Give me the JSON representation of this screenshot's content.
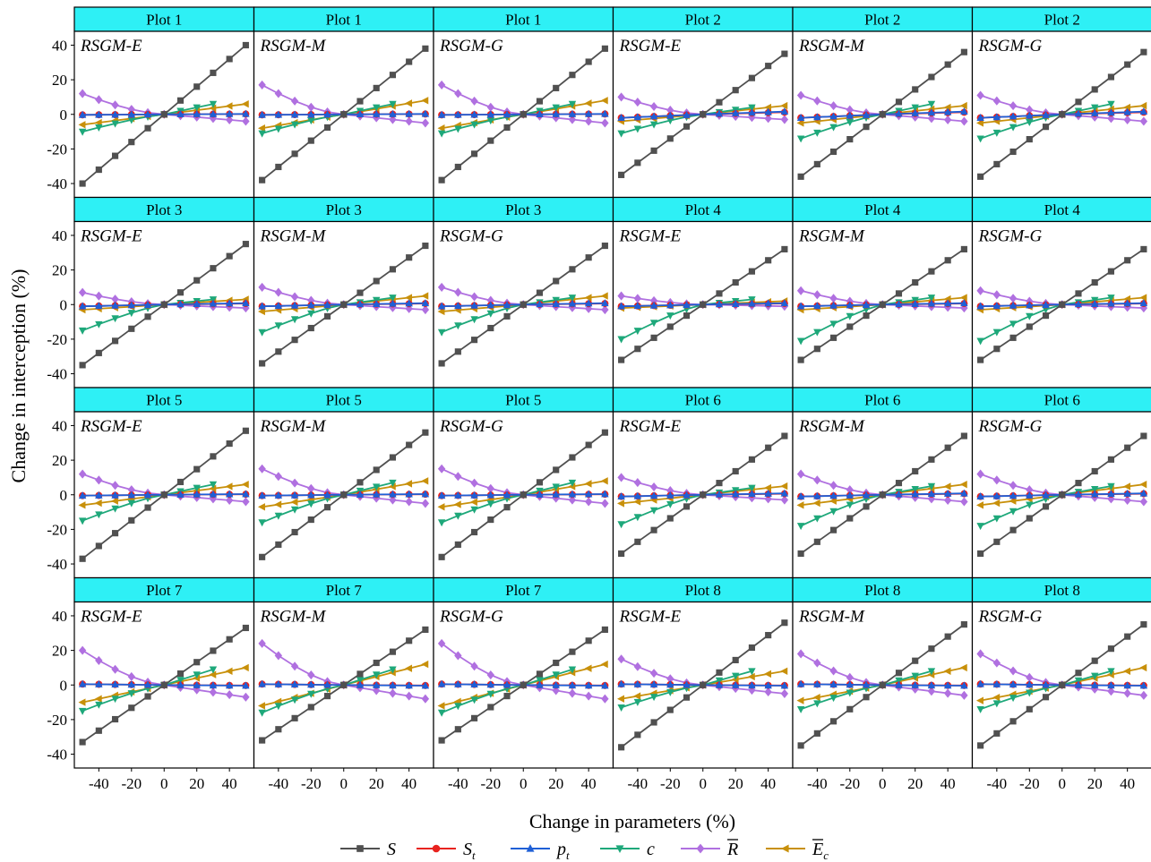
{
  "chart_data": {
    "type": "line",
    "ylabel": "Change in interception (%)",
    "xlabel": "Change in parameters (%)",
    "xlim": [
      -55,
      55
    ],
    "ylim": [
      -48,
      48
    ],
    "x_ticks": [
      -40,
      -20,
      0,
      20,
      40
    ],
    "x_tick_labels": [
      "-40",
      "-20",
      "0",
      "20",
      "40"
    ],
    "y_ticks": [
      40,
      20,
      0,
      -20,
      -40
    ],
    "y_tick_labels": [
      "40",
      "20",
      "0",
      "-20",
      "-40"
    ],
    "x": [
      -50,
      -40,
      -30,
      -20,
      -10,
      0,
      10,
      20,
      30,
      40,
      50
    ],
    "legend": {
      "placement": "bottom-center",
      "entries": [
        {
          "key": "S",
          "main": "S",
          "sub": "",
          "overline": false,
          "color": "#505050",
          "marker": "square"
        },
        {
          "key": "St",
          "main": "S",
          "sub": "t",
          "overline": false,
          "color": "#e8231f",
          "marker": "circle"
        },
        {
          "key": "pt",
          "main": "p",
          "sub": "t",
          "overline": false,
          "color": "#1f5fd6",
          "marker": "triangle-up"
        },
        {
          "key": "c",
          "main": "c",
          "sub": "",
          "overline": false,
          "color": "#1ea87a",
          "marker": "triangle-down"
        },
        {
          "key": "R",
          "main": "R",
          "sub": "",
          "overline": true,
          "color": "#b070e0",
          "marker": "diamond"
        },
        {
          "key": "Ec",
          "main": "E",
          "sub": "c",
          "overline": true,
          "color": "#c8900a",
          "marker": "triangle-left"
        }
      ]
    },
    "panels": [
      {
        "title": "Plot 1",
        "model": "RSGM-E",
        "S_end": 40,
        "St": -0.3,
        "pt": -0.3,
        "c_neg": -10,
        "c_pos": 6,
        "R_neg": 12,
        "R_pos": -4,
        "E_neg": -6,
        "E_pos": 6
      },
      {
        "title": "Plot 1",
        "model": "RSGM-M",
        "S_end": 38,
        "St": -0.3,
        "pt": -0.3,
        "c_neg": -11,
        "c_pos": 6,
        "R_neg": 17,
        "R_pos": -5,
        "E_neg": -8,
        "E_pos": 8
      },
      {
        "title": "Plot 1",
        "model": "RSGM-G",
        "S_end": 38,
        "St": -0.3,
        "pt": -0.3,
        "c_neg": -11,
        "c_pos": 6,
        "R_neg": 17,
        "R_pos": -5,
        "E_neg": -8,
        "E_pos": 8
      },
      {
        "title": "Plot 2",
        "model": "RSGM-E",
        "S_end": 35,
        "St": -2,
        "pt": -2,
        "c_neg": -11,
        "c_pos": 4,
        "R_neg": 10,
        "R_pos": -3,
        "E_neg": -4,
        "E_pos": 5
      },
      {
        "title": "Plot 2",
        "model": "RSGM-M",
        "S_end": 36,
        "St": -2,
        "pt": -2,
        "c_neg": -14,
        "c_pos": 6,
        "R_neg": 11,
        "R_pos": -4,
        "E_neg": -5,
        "E_pos": 5
      },
      {
        "title": "Plot 2",
        "model": "RSGM-G",
        "S_end": 36,
        "St": -2,
        "pt": -2,
        "c_neg": -14,
        "c_pos": 6,
        "R_neg": 11,
        "R_pos": -4,
        "E_neg": -5,
        "E_pos": 5
      },
      {
        "title": "Plot 3",
        "model": "RSGM-E",
        "S_end": 35,
        "St": -1,
        "pt": -1,
        "c_neg": -15,
        "c_pos": 3,
        "R_neg": 7,
        "R_pos": -2,
        "E_neg": -3,
        "E_pos": 3
      },
      {
        "title": "Plot 3",
        "model": "RSGM-M",
        "S_end": 34,
        "St": -1,
        "pt": -1,
        "c_neg": -16,
        "c_pos": 4,
        "R_neg": 10,
        "R_pos": -3,
        "E_neg": -4,
        "E_pos": 5
      },
      {
        "title": "Plot 3",
        "model": "RSGM-G",
        "S_end": 34,
        "St": -1,
        "pt": -1,
        "c_neg": -16,
        "c_pos": 4,
        "R_neg": 10,
        "R_pos": -3,
        "E_neg": -4,
        "E_pos": 5
      },
      {
        "title": "Plot 4",
        "model": "RSGM-E",
        "S_end": 32,
        "St": -1,
        "pt": -1,
        "c_neg": -20,
        "c_pos": 3,
        "R_neg": 5,
        "R_pos": -1,
        "E_neg": -2,
        "E_pos": 2
      },
      {
        "title": "Plot 4",
        "model": "RSGM-M",
        "S_end": 32,
        "St": -1,
        "pt": -1,
        "c_neg": -21,
        "c_pos": 4,
        "R_neg": 8,
        "R_pos": -2,
        "E_neg": -3,
        "E_pos": 4
      },
      {
        "title": "Plot 4",
        "model": "RSGM-G",
        "S_end": 32,
        "St": -1,
        "pt": -1,
        "c_neg": -21,
        "c_pos": 4,
        "R_neg": 8,
        "R_pos": -2,
        "E_neg": -3,
        "E_pos": 4
      },
      {
        "title": "Plot 5",
        "model": "RSGM-E",
        "S_end": 37,
        "St": -0.5,
        "pt": -0.5,
        "c_neg": -15,
        "c_pos": 6,
        "R_neg": 12,
        "R_pos": -4,
        "E_neg": -6,
        "E_pos": 6
      },
      {
        "title": "Plot 5",
        "model": "RSGM-M",
        "S_end": 36,
        "St": -0.5,
        "pt": -0.5,
        "c_neg": -16,
        "c_pos": 7,
        "R_neg": 15,
        "R_pos": -5,
        "E_neg": -7,
        "E_pos": 8
      },
      {
        "title": "Plot 5",
        "model": "RSGM-G",
        "S_end": 36,
        "St": -0.5,
        "pt": -0.5,
        "c_neg": -16,
        "c_pos": 7,
        "R_neg": 15,
        "R_pos": -5,
        "E_neg": -7,
        "E_pos": 8
      },
      {
        "title": "Plot 6",
        "model": "RSGM-E",
        "S_end": 34,
        "St": -1,
        "pt": -1,
        "c_neg": -17,
        "c_pos": 4,
        "R_neg": 10,
        "R_pos": -3,
        "E_neg": -5,
        "E_pos": 5
      },
      {
        "title": "Plot 6",
        "model": "RSGM-M",
        "S_end": 34,
        "St": -1,
        "pt": -1,
        "c_neg": -18,
        "c_pos": 5,
        "R_neg": 12,
        "R_pos": -4,
        "E_neg": -6,
        "E_pos": 6
      },
      {
        "title": "Plot 6",
        "model": "RSGM-G",
        "S_end": 34,
        "St": -1,
        "pt": -1,
        "c_neg": -18,
        "c_pos": 5,
        "R_neg": 12,
        "R_pos": -4,
        "E_neg": -6,
        "E_pos": 6
      },
      {
        "title": "Plot 7",
        "model": "RSGM-E",
        "S_end": 33,
        "St": 0.5,
        "pt": 0.5,
        "c_neg": -15,
        "c_pos": 9,
        "R_neg": 20,
        "R_pos": -7,
        "E_neg": -10,
        "E_pos": 10
      },
      {
        "title": "Plot 7",
        "model": "RSGM-M",
        "S_end": 32,
        "St": 0.5,
        "pt": 0.5,
        "c_neg": -16,
        "c_pos": 9,
        "R_neg": 24,
        "R_pos": -8,
        "E_neg": -12,
        "E_pos": 12
      },
      {
        "title": "Plot 7",
        "model": "RSGM-G",
        "S_end": 32,
        "St": 0.5,
        "pt": 0.5,
        "c_neg": -16,
        "c_pos": 9,
        "R_neg": 24,
        "R_pos": -8,
        "E_neg": -12,
        "E_pos": 12
      },
      {
        "title": "Plot 8",
        "model": "RSGM-E",
        "S_end": 36,
        "St": 0.5,
        "pt": 0.5,
        "c_neg": -13,
        "c_pos": 8,
        "R_neg": 15,
        "R_pos": -5,
        "E_neg": -8,
        "E_pos": 8
      },
      {
        "title": "Plot 8",
        "model": "RSGM-M",
        "S_end": 35,
        "St": 0.5,
        "pt": 0.5,
        "c_neg": -14,
        "c_pos": 8,
        "R_neg": 18,
        "R_pos": -6,
        "E_neg": -9,
        "E_pos": 10
      },
      {
        "title": "Plot 8",
        "model": "RSGM-G",
        "S_end": 35,
        "St": 0.5,
        "pt": 0.5,
        "c_neg": -14,
        "c_pos": 8,
        "R_neg": 18,
        "R_pos": -6,
        "E_neg": -9,
        "E_pos": 10
      }
    ]
  },
  "colors": {
    "header_fill": "#2ef0f5",
    "frame": "#000000"
  }
}
